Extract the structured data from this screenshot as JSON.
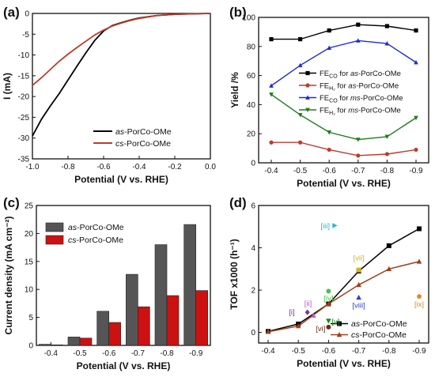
{
  "chart_data": [
    {
      "panel": "(a)",
      "type": "line",
      "xlabel": "Potential (V vs. RHE)",
      "ylabel": "I (mA)",
      "xlim": [
        -1.0,
        0.0
      ],
      "ylim": [
        -35,
        0
      ],
      "xticks": [
        "-1.0",
        "-0.8",
        "-0.6",
        "-0.4",
        "-0.2",
        "0.0"
      ],
      "yticks": [
        "0",
        "-5",
        "-10",
        "-15",
        "-20",
        "-25",
        "-30",
        "-35"
      ],
      "legend_position": "bottom-right",
      "series": [
        {
          "name": "as-PorCo-OMe",
          "name_italic": "as",
          "name_rest": "-PorCo-OMe",
          "color": "#000000",
          "x": [
            -1.0,
            -0.95,
            -0.9,
            -0.85,
            -0.8,
            -0.75,
            -0.7,
            -0.65,
            -0.6,
            -0.57,
            -0.55,
            -0.5,
            -0.45,
            -0.4,
            -0.3,
            -0.2,
            -0.1,
            0.0
          ],
          "y": [
            -29.5,
            -25.5,
            -22.3,
            -19.3,
            -16.0,
            -12.7,
            -9.5,
            -6.5,
            -4.2,
            -3.4,
            -2.9,
            -2.2,
            -1.6,
            -1.1,
            -0.5,
            -0.2,
            -0.1,
            0.0
          ]
        },
        {
          "name": "cs-PorCo-OMe",
          "name_italic": "cs",
          "name_rest": "-PorCo-OMe",
          "color": "#c0392b",
          "x": [
            -1.0,
            -0.95,
            -0.9,
            -0.85,
            -0.8,
            -0.75,
            -0.7,
            -0.65,
            -0.6,
            -0.55,
            -0.5,
            -0.45,
            -0.4,
            -0.3,
            -0.2,
            -0.1,
            0.0
          ],
          "y": [
            -17.3,
            -15.5,
            -13.5,
            -11.5,
            -9.8,
            -8.2,
            -6.7,
            -5.2,
            -4.0,
            -3.0,
            -2.3,
            -1.7,
            -1.2,
            -0.5,
            -0.2,
            -0.1,
            0.0
          ]
        }
      ]
    },
    {
      "panel": "(b)",
      "type": "line",
      "xlabel": "Potential (V vs. RHE)",
      "ylabel": "Yield /%",
      "ylim": [
        0,
        100
      ],
      "categories": [
        "-0.4",
        "-0.5",
        "-0.6",
        "-0.7",
        "-0.8",
        "-0.9"
      ],
      "yticks": [
        "0",
        "20",
        "40",
        "60",
        "80",
        "100"
      ],
      "legend_position": "center-right",
      "series": [
        {
          "name": "FECO for as-PorCo-OMe",
          "fe": "FE",
          "sub": "CO",
          "mid": " for ",
          "italic": "as",
          "rest": "-PorCo-OMe",
          "color": "#000000",
          "marker": "square",
          "values": [
            85,
            85,
            91,
            95,
            94,
            91
          ]
        },
        {
          "name": "FEH2 for as-PorCo-OMe",
          "fe": "FE",
          "sub": "H₂",
          "mid": " for ",
          "italic": "as",
          "rest": "-PorCo-OMe",
          "color": "#c0392b",
          "marker": "circle",
          "values": [
            14,
            14,
            9,
            5,
            6,
            9
          ]
        },
        {
          "name": "FECO for ms-PorCo-OMe",
          "fe": "FE",
          "sub": "CO",
          "mid": " for ",
          "italic": "ms",
          "rest": "-PorCo-OMe",
          "color": "#1f2bd6",
          "marker": "triangle-up",
          "values": [
            53,
            67,
            79,
            84,
            82,
            69
          ]
        },
        {
          "name": "FEH2 for ms-PorCo-OMe",
          "fe": "FE",
          "sub": "H₂",
          "mid": " for ",
          "italic": "ms",
          "rest": "-PorCo-OMe",
          "color": "#1e7b1e",
          "marker": "triangle-down",
          "values": [
            47,
            33,
            21,
            16,
            18,
            31
          ]
        }
      ]
    },
    {
      "panel": "(c)",
      "type": "bar",
      "xlabel": "Potential (V vs. RHE)",
      "ylabel": "Current density (mA cm⁻²)",
      "ylim": [
        0,
        25
      ],
      "categories": [
        "-0.4",
        "-0.5",
        "-0.6",
        "-0.7",
        "-0.8",
        "-0.9"
      ],
      "yticks": [
        "0",
        "5",
        "10",
        "15",
        "20",
        "25"
      ],
      "legend_position": "top-left",
      "series": [
        {
          "name": "as-PorCo-OMe",
          "name_italic": "as",
          "name_rest": "-PorCo-OMe",
          "color": "#555555",
          "values": [
            0.2,
            1.5,
            6.1,
            12.7,
            18.0,
            21.6
          ]
        },
        {
          "name": "cs-PorCo-OMe",
          "name_italic": "cs",
          "name_rest": "-PorCo-OMe",
          "color": "#cc1111",
          "values": [
            0.1,
            1.3,
            4.1,
            6.9,
            8.9,
            9.8
          ]
        }
      ]
    },
    {
      "panel": "(d)",
      "type": "line",
      "xlabel": "Potential (V vs. RHE)",
      "ylabel": "TOF x1000 (h⁻¹)",
      "ylim": [
        -0.5,
        6
      ],
      "xticks": [
        "-0.4",
        "-0.5",
        "-0.6",
        "-0.7",
        "-0.8",
        "-0.9"
      ],
      "yticks": [
        "0",
        "2",
        "4",
        "6"
      ],
      "legend_position": "bottom-right",
      "series": [
        {
          "name": "as-PorCo-OMe",
          "name_italic": "as",
          "name_rest": "-PorCo-OMe",
          "color": "#000000",
          "marker": "square",
          "x": [
            -0.4,
            -0.5,
            -0.6,
            -0.7,
            -0.8,
            -0.9
          ],
          "y": [
            0.05,
            0.4,
            1.35,
            2.9,
            4.1,
            4.9
          ]
        },
        {
          "name": "cs-PorCo-OMe",
          "name_italic": "cs",
          "name_rest": "-PorCo-OMe",
          "color": "#a0401a",
          "marker": "triangle-up",
          "x": [
            -0.4,
            -0.5,
            -0.6,
            -0.7,
            -0.8,
            -0.9
          ],
          "y": [
            0.03,
            0.3,
            1.35,
            2.25,
            3.0,
            3.35
          ]
        }
      ],
      "annotations": [
        {
          "label": "[i]",
          "x": -0.53,
          "y": 0.95,
          "color": "#7b2fa8",
          "marker": "diamond"
        },
        {
          "label": "[ii]",
          "x": -0.55,
          "y": 0.8,
          "color": "#c054c8",
          "marker": "triangle-up"
        },
        {
          "label": "[iii]",
          "x": -0.62,
          "y": 5.05,
          "color": "#23b8d8",
          "marker": "triangle-right"
        },
        {
          "label": "[iv]",
          "x": -0.6,
          "y": 1.95,
          "color": "#4cc04c",
          "marker": "circle"
        },
        {
          "label": "[v]",
          "x": -0.6,
          "y": 0.55,
          "color": "#1e8a1e",
          "marker": "triangle-down"
        },
        {
          "label": "[vi]",
          "x": -0.6,
          "y": 0.25,
          "color": "#6b2f1a",
          "marker": "circle"
        },
        {
          "label": "[vii]",
          "x": -0.7,
          "y": 2.95,
          "color": "#d6b41c",
          "marker": "square"
        },
        {
          "label": "[viii]",
          "x": -0.7,
          "y": 1.65,
          "color": "#2f3fd6",
          "marker": "triangle-up"
        },
        {
          "label": "[ix]",
          "x": -0.9,
          "y": 1.7,
          "color": "#e08a1e",
          "marker": "pentagon"
        }
      ]
    }
  ]
}
